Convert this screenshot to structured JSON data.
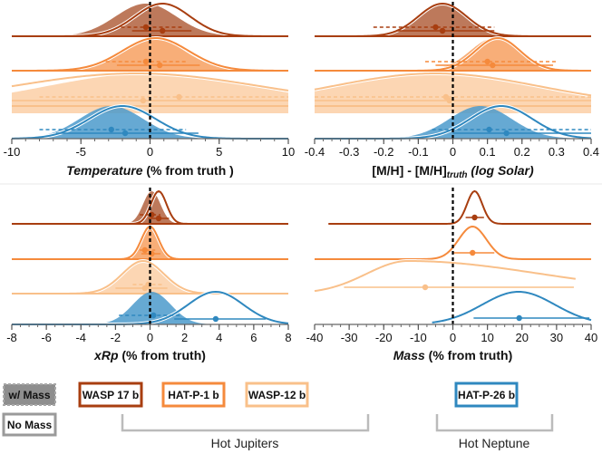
{
  "colors": {
    "WASP 17 b": "#a83e10",
    "HAT-P-1 b": "#f58a3c",
    "WASP-12 b": "#f9c08a",
    "HAT-P-26 b": "#2f88bf",
    "truth_line": "#000000",
    "bracket": "#bbbbbb",
    "wmass_box": "#8c8c8c",
    "nomass_box": "#9a9a9a"
  },
  "chart_data": [
    {
      "id": "temperature",
      "type": "ridgeline",
      "title": "",
      "xlabel_parts": [
        {
          "text": "Temperature",
          "italic": true
        },
        {
          "text": " (% from truth )",
          "italic": false
        }
      ],
      "xlim": [
        -10,
        10
      ],
      "xticks": [
        -10,
        -5,
        0,
        5,
        10
      ],
      "xtick_labels": [
        "-10",
        "-5",
        "0",
        "5",
        "10"
      ],
      "minor_tick_step": 1,
      "truth": 0,
      "series": [
        {
          "planet": "WASP 17 b",
          "with_mass": {
            "mode": -0.3,
            "sigma": 2.2,
            "median": -0.3,
            "err": [
              -2.1,
              2.4
            ]
          },
          "no_mass": {
            "mode": 0.9,
            "sigma": 2.0,
            "median": 0.9,
            "err": [
              -1.3,
              3.0
            ]
          }
        },
        {
          "planet": "HAT-P-1 b",
          "with_mass": {
            "mode": 0.2,
            "sigma": 2.3,
            "median": -0.3,
            "err": [
              -3.2,
              2.7
            ]
          },
          "no_mass": {
            "mode": 0.4,
            "sigma": 2.4,
            "median": 0.7,
            "err": [
              -2.4,
              3.6
            ]
          }
        },
        {
          "planet": "WASP-12 b",
          "with_mass": {
            "mode": 0.0,
            "sigma": 7.5,
            "median": 2.1,
            "err": [
              -8.0,
              10.0
            ]
          },
          "no_mass": {
            "mode": -1.0,
            "sigma": 9.0,
            "median": -0.5,
            "err": [
              -10.0,
              10.0
            ]
          }
        },
        {
          "planet": "HAT-P-26 b",
          "with_mass": {
            "mode": -2.8,
            "sigma": 2.3,
            "median": -2.8,
            "err": [
              -8.0,
              2.6
            ]
          },
          "no_mass": {
            "mode": -2.0,
            "sigma": 2.4,
            "median": -1.8,
            "err": [
              -6.8,
              3.5
            ]
          }
        }
      ]
    },
    {
      "id": "metallicity",
      "type": "ridgeline",
      "title": "",
      "xlabel_parts": [
        {
          "text": "[M/H] - [M/H]",
          "italic": false
        },
        {
          "text": "truth",
          "italic": true,
          "sub": true
        },
        {
          "text": " (log Solar)",
          "italic": true
        }
      ],
      "xlim": [
        -0.4,
        0.4
      ],
      "xticks": [
        -0.4,
        -0.3,
        -0.2,
        -0.1,
        0,
        0.1,
        0.2,
        0.3,
        0.4
      ],
      "xtick_labels": [
        "-0.4",
        "-0.3",
        "-0.2",
        "-0.1",
        "0",
        "0.1",
        "0.2",
        "0.3",
        "0.4"
      ],
      "minor_tick_step": 0.025,
      "truth": 0,
      "series": [
        {
          "planet": "WASP 17 b",
          "with_mass": {
            "mode": -0.03,
            "sigma": 0.075,
            "median": -0.05,
            "err": [
              -0.23,
              0.12
            ]
          },
          "no_mass": {
            "mode": -0.03,
            "sigma": 0.07,
            "median": -0.03,
            "err": [
              -0.16,
              0.12
            ]
          }
        },
        {
          "planet": "HAT-P-1 b",
          "with_mass": {
            "mode": 0.12,
            "sigma": 0.07,
            "median": 0.1,
            "err": [
              -0.08,
              0.3
            ]
          },
          "no_mass": {
            "mode": 0.13,
            "sigma": 0.065,
            "median": 0.115,
            "err": [
              -0.05,
              0.29
            ]
          }
        },
        {
          "planet": "WASP-12 b",
          "with_mass": {
            "mode": -0.05,
            "sigma": 0.3,
            "median": -0.02,
            "err": [
              -0.4,
              0.4
            ]
          },
          "no_mass": {
            "mode": -0.05,
            "sigma": 0.3,
            "median": -0.01,
            "err": [
              -0.4,
              0.4
            ]
          }
        },
        {
          "planet": "HAT-P-26 b",
          "with_mass": {
            "mode": 0.08,
            "sigma": 0.09,
            "median": 0.105,
            "err": [
              -0.06,
              0.4
            ]
          },
          "no_mass": {
            "mode": 0.14,
            "sigma": 0.09,
            "median": 0.155,
            "err": [
              0.0,
              0.4
            ]
          }
        }
      ]
    },
    {
      "id": "radius",
      "type": "ridgeline",
      "title": "",
      "xlabel_parts": [
        {
          "text": "xRp",
          "italic": true
        },
        {
          "text": " (% from truth)",
          "italic": false
        }
      ],
      "xlim": [
        -8,
        8
      ],
      "xticks": [
        -8,
        -6,
        -4,
        -2,
        0,
        2,
        4,
        6,
        8
      ],
      "xtick_labels": [
        "-8",
        "-6",
        "-4",
        "-2",
        "0",
        "2",
        "4",
        "6",
        "8"
      ],
      "minor_tick_step": 0.5,
      "truth": 0,
      "series": [
        {
          "planet": "WASP 17 b",
          "with_mass": {
            "mode": 0.1,
            "sigma": 0.5,
            "median": 0.1,
            "err": [
              -0.6,
              0.6
            ]
          },
          "no_mass": {
            "mode": 0.5,
            "sigma": 0.45,
            "median": 0.5,
            "err": [
              -0.1,
              1.1
            ]
          }
        },
        {
          "planet": "HAT-P-1 b",
          "with_mass": {
            "mode": -0.1,
            "sigma": 0.5,
            "median": -0.3,
            "err": [
              -0.6,
              0.3
            ]
          },
          "no_mass": {
            "mode": 0.0,
            "sigma": 0.5,
            "median": 0.1,
            "err": [
              -0.5,
              0.6
            ]
          }
        },
        {
          "planet": "WASP-12 b",
          "with_mass": {
            "mode": -0.3,
            "sigma": 1.2,
            "median": -0.1,
            "err": [
              -1.0,
              0.8
            ]
          },
          "no_mass": {
            "mode": -0.4,
            "sigma": 1.2,
            "median": -0.3,
            "err": [
              -2.0,
              1.0
            ]
          }
        },
        {
          "planet": "HAT-P-26 b",
          "with_mass": {
            "mode": 0.1,
            "sigma": 1.1,
            "median": 0.2,
            "err": [
              -1.8,
              1.8
            ]
          },
          "no_mass": {
            "mode": 3.8,
            "sigma": 1.6,
            "median": 3.8,
            "err": [
              1.4,
              6.7
            ]
          }
        }
      ]
    },
    {
      "id": "mass",
      "type": "ridgeline",
      "title": "",
      "xlabel_parts": [
        {
          "text": "Mass",
          "italic": true
        },
        {
          "text": " (% from truth)",
          "italic": false
        }
      ],
      "xlim": [
        -40,
        40
      ],
      "xticks": [
        -40,
        -30,
        -20,
        -10,
        0,
        10,
        20,
        30,
        40
      ],
      "xtick_labels": [
        "-40",
        "-30",
        "-20",
        "-10",
        "0",
        "10",
        "20",
        "30",
        "40"
      ],
      "minor_tick_step": 2.5,
      "truth": 0,
      "series": [
        {
          "planet": "WASP 17 b",
          "with_mass": null,
          "no_mass": {
            "mode": 6.3,
            "sigma": 2.2,
            "median": 6.3,
            "err": [
              3.7,
              9.0
            ],
            "xrange": [
              -36,
              40
            ]
          }
        },
        {
          "planet": "HAT-P-1 b",
          "with_mass": null,
          "no_mass": {
            "mode": 5.7,
            "sigma": 4.0,
            "median": 5.7,
            "err": [
              0.2,
              12.0
            ],
            "xrange": [
              -40,
              40
            ]
          }
        },
        {
          "planet": "WASP-12 b",
          "with_mass": null,
          "no_mass": {
            "mode": -13,
            "sigma": 12,
            "median": -8,
            "err": [
              -31.5,
              35
            ],
            "skew_tail": true,
            "xrange": [
              -40,
              35.5
            ]
          }
        },
        {
          "planet": "HAT-P-26 b",
          "with_mass": null,
          "no_mass": {
            "mode": 19,
            "sigma": 10.5,
            "median": 19.2,
            "err": [
              6.0,
              39.5
            ],
            "xrange": [
              -6,
              40
            ]
          }
        }
      ]
    }
  ],
  "legend": {
    "with_mass_label": "w/ Mass",
    "no_mass_label": "No Mass",
    "planets": [
      "WASP 17 b",
      "HAT-P-1 b",
      "WASP-12 b",
      "HAT-P-26 b"
    ],
    "groups": [
      {
        "label": "Hot Jupiters",
        "members": [
          "WASP 17 b",
          "HAT-P-1 b",
          "WASP-12 b"
        ]
      },
      {
        "label": "Hot Neptune",
        "members": [
          "HAT-P-26 b"
        ]
      }
    ]
  }
}
